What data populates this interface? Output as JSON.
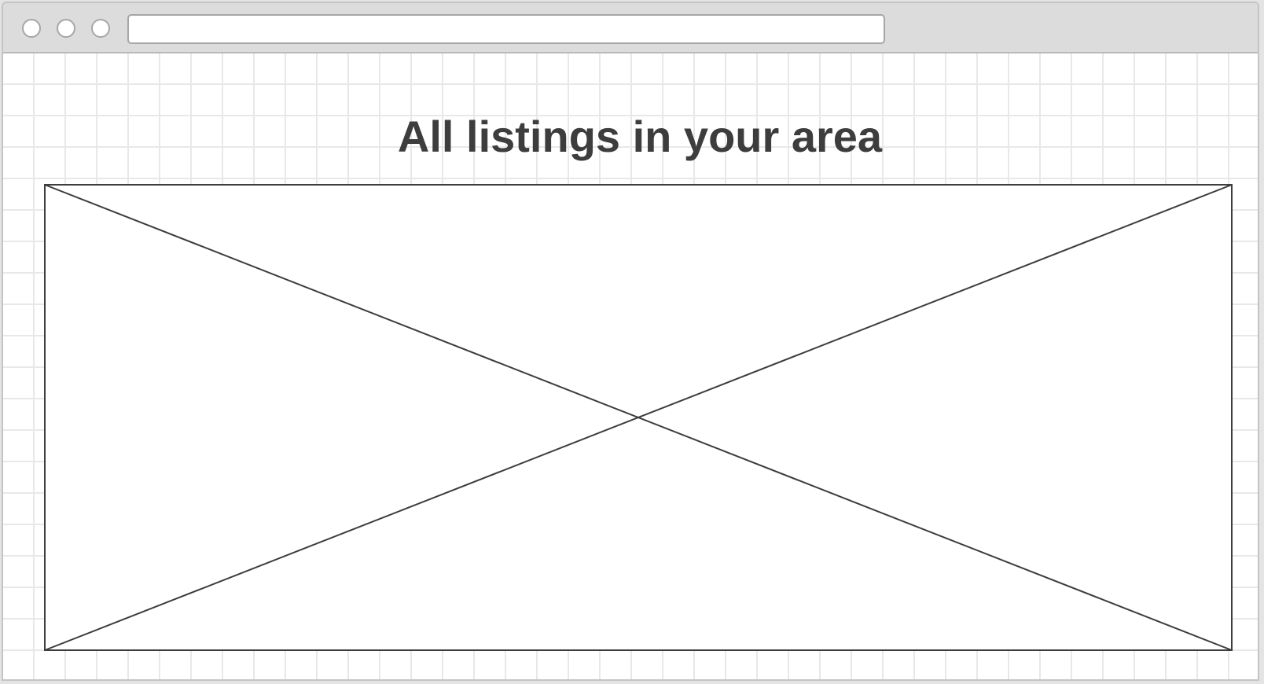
{
  "window": {
    "address_bar": {
      "value": ""
    }
  },
  "page": {
    "title": "All listings in your area"
  },
  "image_placeholder": {
    "icon": "image-placeholder-icon"
  },
  "colors": {
    "text": "#3d3d3d",
    "grid": "#e8e8e8",
    "chrome": "#dcdcdc",
    "chrome_border": "#b8b8b8",
    "placeholder_stroke": "#3d3d3d"
  }
}
